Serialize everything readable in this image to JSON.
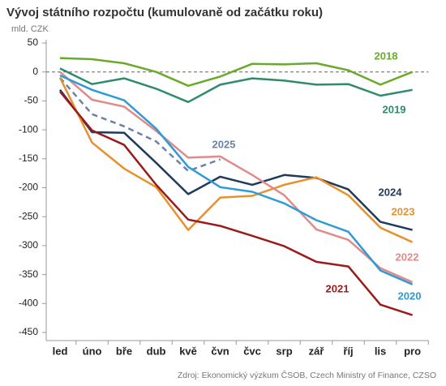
{
  "chart_data": {
    "type": "line",
    "title": "Vývoj státního rozpočtu (kumulovaně od začátku roku)",
    "subtitle": "mld. CZK",
    "source": "Zdroj: Ekonomický výzkum ČSOB, Czech Ministry of Finance, CZSO",
    "categories": [
      "led",
      "úno",
      "bře",
      "dub",
      "kvě",
      "čvn",
      "čvc",
      "srp",
      "zář",
      "říj",
      "lis",
      "pro"
    ],
    "ylim": [
      -450,
      50
    ],
    "yticks": [
      50,
      0,
      -50,
      -100,
      -150,
      -200,
      -250,
      -300,
      -350,
      -400,
      -450
    ],
    "series": [
      {
        "name": "2018",
        "color": "#6aaa2a",
        "values": [
          24,
          22,
          15,
          0,
          -24,
          -8,
          14,
          13,
          15,
          3,
          -22,
          0
        ]
      },
      {
        "name": "2019",
        "color": "#2e8b6e",
        "values": [
          6,
          -21,
          -11,
          -29,
          -52,
          -22,
          -11,
          -15,
          -22,
          -21,
          -41,
          -31
        ]
      },
      {
        "name": "2025",
        "color": "#6b82a8",
        "dashed": true,
        "values": [
          -10,
          -73,
          -94,
          -120,
          -171,
          -151,
          null,
          null,
          null,
          null,
          null,
          null
        ]
      },
      {
        "name": "2024",
        "color": "#1f3a5f",
        "values": [
          -31,
          -104,
          -105,
          -157,
          -211,
          -181,
          -195,
          -178,
          -183,
          -203,
          -259,
          -273
        ]
      },
      {
        "name": "2023",
        "color": "#e8912c",
        "values": [
          -10,
          -122,
          -167,
          -199,
          -273,
          -217,
          -214,
          -195,
          -182,
          -213,
          -269,
          -294
        ]
      },
      {
        "name": "2022",
        "color": "#e08a8a",
        "values": [
          0,
          -48,
          -60,
          -102,
          -148,
          -146,
          -178,
          -213,
          -272,
          -290,
          -339,
          -363
        ]
      },
      {
        "name": "2021",
        "color": "#9b1b1b",
        "values": [
          -34,
          -101,
          -126,
          -195,
          -255,
          -266,
          -283,
          -301,
          -328,
          -336,
          -402,
          -420
        ]
      },
      {
        "name": "2020",
        "color": "#2e9bd6",
        "values": [
          -6,
          -31,
          -49,
          -98,
          -164,
          -199,
          -207,
          -227,
          -256,
          -276,
          -343,
          -367
        ]
      }
    ]
  }
}
